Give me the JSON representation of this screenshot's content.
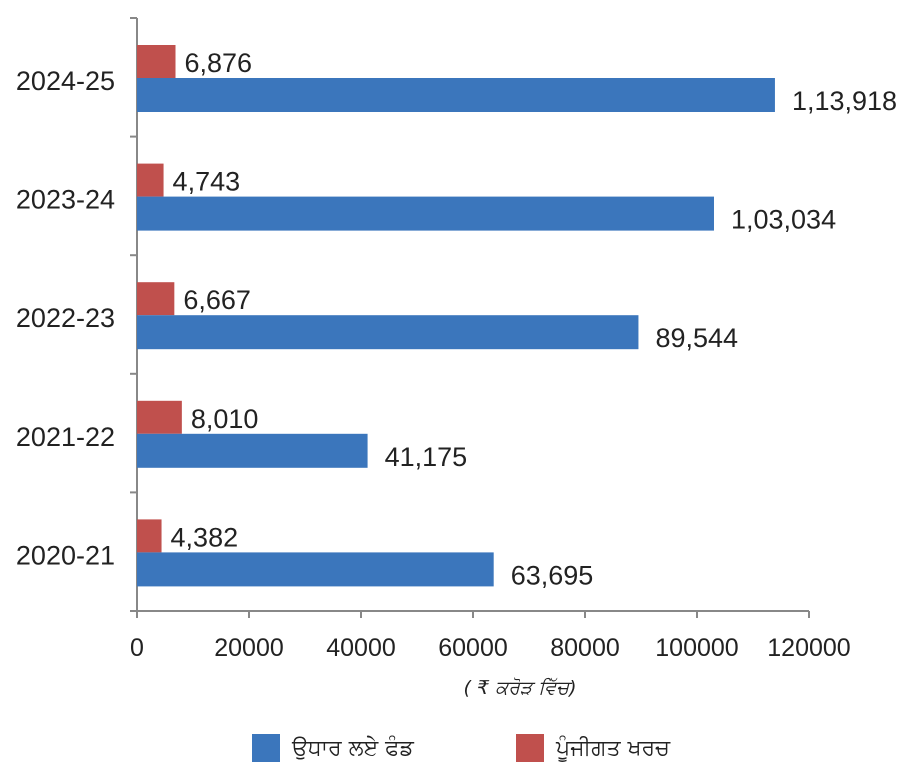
{
  "chart_data": {
    "type": "bar",
    "orientation": "horizontal",
    "categories": [
      "2024-25",
      "2023-24",
      "2022-23",
      "2021-22",
      "2020-21"
    ],
    "series": [
      {
        "name": "ਪੂੰਜੀਗਤ ਖਰਚ",
        "color": "#C0504D",
        "values": [
          6876,
          4743,
          6667,
          8010,
          4382
        ],
        "labels": [
          "6,876",
          "4,743",
          "6,667",
          "8,010",
          "4,382"
        ]
      },
      {
        "name": "ਉਧਾਰ ਲਏ ਫੰਡ",
        "color": "#3B76BC",
        "values": [
          113918,
          103034,
          89544,
          41175,
          63695
        ],
        "labels": [
          "1,13,918",
          "1,03,034",
          "89,544",
          "41,175",
          "63,695"
        ]
      }
    ],
    "xlim": [
      0,
      120000
    ],
    "xticks": [
      "0",
      "20000",
      "40000",
      "60000",
      "80000",
      "100000",
      "120000"
    ],
    "xlabel": "( ₹ ਕਰੋੜ ਵਿੱਚ)",
    "grid": false,
    "legend": {
      "position": "bottom",
      "entries": [
        "ਉਧਾਰ ਲਏ ਫੰਡ",
        "ਪੂੰਜੀਗਤ ਖਰਚ"
      ]
    }
  }
}
